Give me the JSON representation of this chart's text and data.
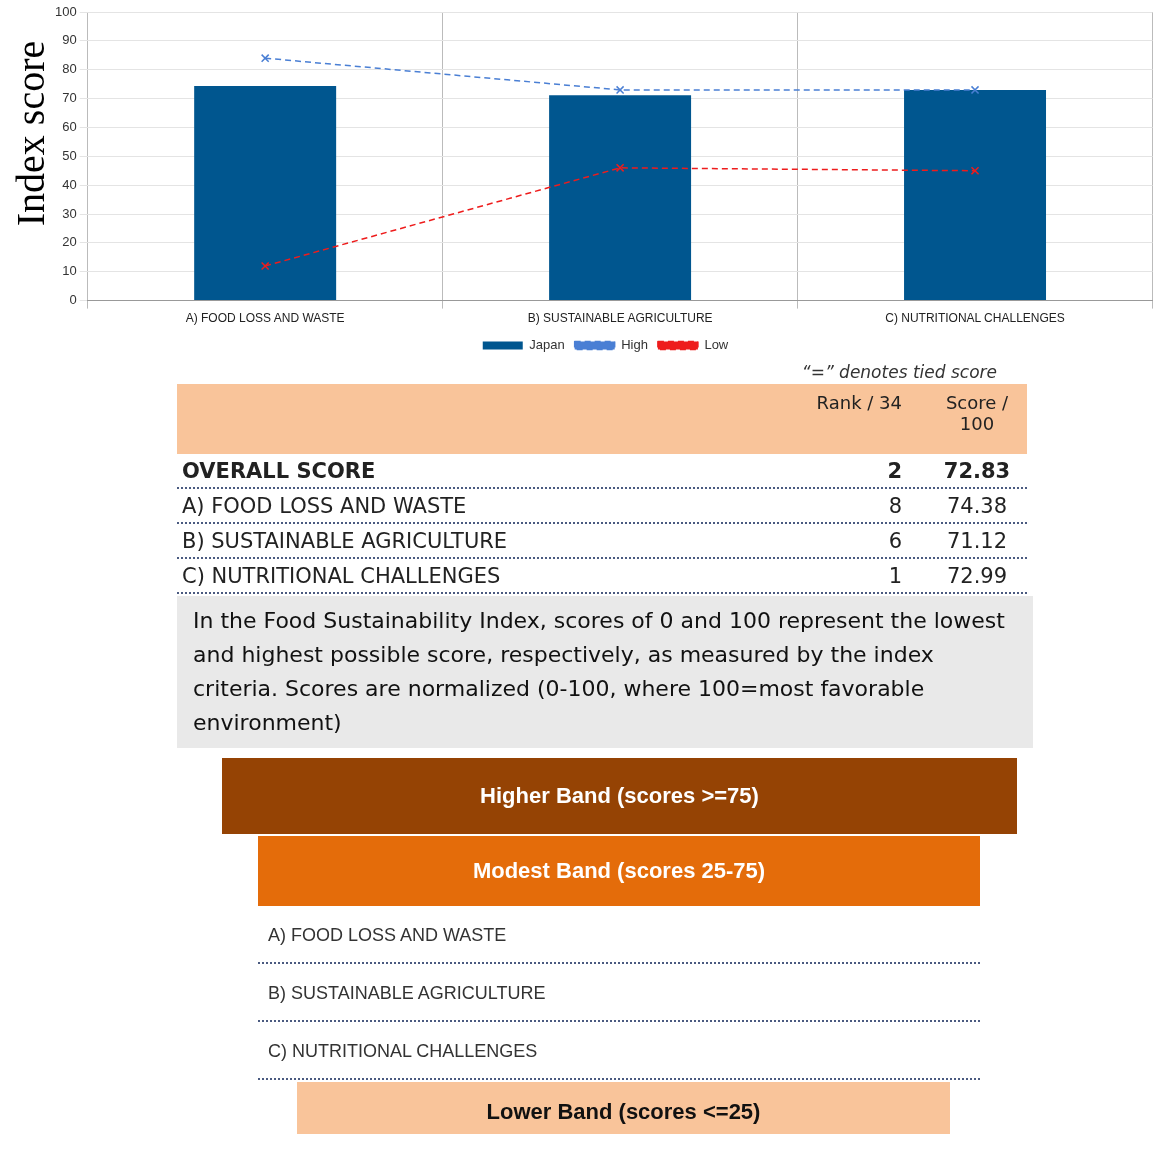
{
  "chart_data": {
    "type": "bar",
    "ylabel": "Index score",
    "categories": [
      "A) FOOD LOSS AND WASTE",
      "B) SUSTAINABLE AGRICULTURE",
      "C) NUTRITIONAL CHALLENGES"
    ],
    "series": [
      {
        "name": "Japan",
        "color": "#00568f",
        "values": [
          74.38,
          71.12,
          72.99
        ]
      },
      {
        "name": "High",
        "type": "line",
        "color": "#4a7fd4",
        "values": [
          84,
          73,
          73
        ]
      },
      {
        "name": "Low",
        "type": "line",
        "color": "#ee1c1c",
        "values": [
          12,
          46,
          45
        ]
      }
    ],
    "ylim": [
      0,
      100
    ],
    "yticks": [
      0,
      10,
      20,
      30,
      40,
      50,
      60,
      70,
      80,
      90,
      100
    ],
    "grid": true,
    "legend": "bottom",
    "marker": "cross",
    "line_style": "dashed",
    "annotations": [
      "“=” denotes tied score",
      "Rank / 34",
      "Score / 100",
      "OVERALL SCORE",
      "2",
      "72.83",
      "A) FOOD LOSS AND WASTE",
      "8",
      "74.38",
      "B) SUSTAINABLE AGRICULTURE",
      "6",
      "71.12",
      "C) NUTRITIONAL CHALLENGES",
      "1",
      "72.99",
      "In the Food Sustainability Index, scores of 0 and 100 represent the lowest and highest possible score, respectively, as measured by the index criteria. Scores are normalized (0-100, where 100=most favorable environment)",
      "Higher Band (scores >=75)",
      "Modest Band (scores 25-75)",
      "A) FOOD LOSS AND WASTE",
      "B) SUSTAINABLE AGRICULTURE",
      "C) NUTRITIONAL CHALLENGES",
      "Lower Band (scores <=25)"
    ]
  }
}
